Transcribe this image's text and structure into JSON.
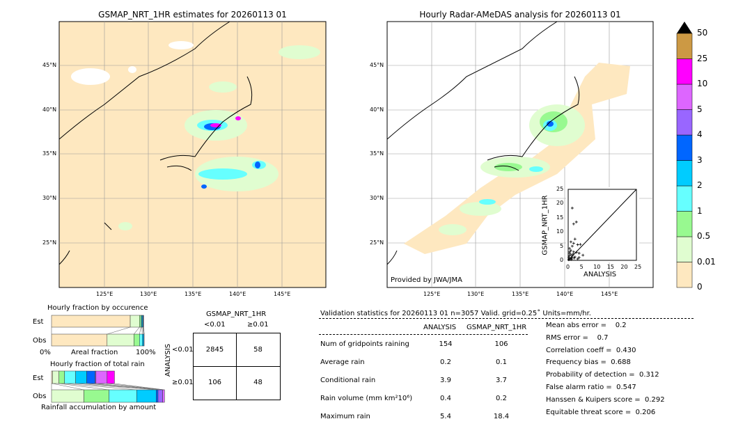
{
  "map_left": {
    "title": "GSMAP_NRT_1HR estimates for 20260113 01",
    "lon_ticks": [
      "125°E",
      "130°E",
      "135°E",
      "140°E",
      "145°E"
    ],
    "lat_ticks": [
      "45°N",
      "40°N",
      "35°N",
      "30°N",
      "25°N"
    ]
  },
  "map_right": {
    "title": "Hourly Radar-AMeDAS analysis for 20260113 01",
    "lon_ticks": [
      "125°E",
      "130°E",
      "135°E",
      "140°E",
      "145°E"
    ],
    "lat_ticks": [
      "45°N",
      "40°N",
      "35°N",
      "30°N",
      "25°N"
    ],
    "credit": "Provided by JWA/JMA"
  },
  "colorbar": {
    "levels": [
      "0",
      "0.01",
      "0.5",
      "1",
      "2",
      "3",
      "4",
      "5",
      "10",
      "25",
      "50"
    ],
    "colors": [
      "#fee8c0",
      "#e0fdd0",
      "#98f990",
      "#66ffff",
      "#00ccff",
      "#0066ff",
      "#9966ff",
      "#dd66ff",
      "#ff00ff",
      "#cc9944"
    ],
    "extend_color": "#000000"
  },
  "chart_data": [
    {
      "type": "scatter",
      "xlabel": "ANALYSIS",
      "ylabel": "GSMAP_NRT_1HR",
      "xlim": [
        0,
        25
      ],
      "ylim": [
        0,
        25
      ],
      "ticks": [
        "0",
        "5",
        "10",
        "15",
        "20",
        "25"
      ],
      "points": [
        [
          1.5,
          18.4
        ],
        [
          2,
          12.8
        ],
        [
          3,
          13.5
        ],
        [
          2.5,
          7.5
        ],
        [
          1,
          6.5
        ],
        [
          2,
          6
        ],
        [
          3.5,
          5.5
        ],
        [
          4.5,
          5.6
        ],
        [
          1.5,
          5
        ],
        [
          0.5,
          4.2
        ],
        [
          1,
          3.5
        ],
        [
          2,
          3
        ],
        [
          3,
          2.8
        ],
        [
          4,
          2.5
        ],
        [
          5.4,
          1.8
        ],
        [
          0.5,
          2.5
        ],
        [
          1,
          2
        ],
        [
          1.5,
          1.5
        ],
        [
          2.5,
          1.2
        ],
        [
          0.3,
          1
        ],
        [
          0.8,
          0.6
        ],
        [
          1.2,
          0.3
        ],
        [
          0.2,
          0.2
        ],
        [
          3.5,
          0.5
        ],
        [
          4,
          1
        ],
        [
          0.6,
          3
        ],
        [
          1.8,
          2.2
        ],
        [
          2.2,
          0.8
        ],
        [
          0.4,
          1.6
        ],
        [
          1.4,
          0.9
        ]
      ]
    },
    {
      "type": "bar",
      "title": "Hourly fraction by occurence",
      "xlabel": "Areal fraction",
      "x_ticks": [
        "0%",
        "100%"
      ],
      "categories": [
        "Est",
        "Obs"
      ],
      "series": [
        {
          "values_est": [
            0.85,
            0.1,
            0.015,
            0.01,
            0.01,
            0.005,
            0.005
          ],
          "values_obs": [
            0.6,
            0.29,
            0.06,
            0.03,
            0.015,
            0.005,
            0
          ]
        }
      ]
    },
    {
      "type": "bar",
      "title": "Hourly fraction of total rain",
      "xlabel": "Rainfall accumulation by amount",
      "categories": [
        "Est",
        "Obs"
      ],
      "series": [
        {
          "values_est": [
            0.01,
            0.07,
            0.06,
            0.12,
            0.12,
            0.09,
            0.01,
            0.12,
            0.08
          ],
          "values_obs": [
            0.35,
            0.27,
            0.3,
            0.21,
            0.02,
            0.05,
            0.02
          ]
        }
      ]
    }
  ],
  "contingency": {
    "title": "GSMAP_NRT_1HR",
    "col_headers": [
      "<0.01",
      "≥0.01"
    ],
    "row_label": "ANALYSIS",
    "row_headers": [
      "<0.01",
      "≥0.01"
    ],
    "cells": [
      [
        "2845",
        "58"
      ],
      [
        "106",
        "48"
      ]
    ]
  },
  "stats": {
    "header": "Validation statistics for 20260113 01  n=3057 Valid. grid=0.25˚ Units=mm/hr.",
    "col1": "ANALYSIS",
    "col2": "GSMAP_NRT_1HR",
    "rows": [
      {
        "label": "Num of gridpoints raining",
        "a": "154",
        "g": "106"
      },
      {
        "label": "Average rain",
        "a": "0.2",
        "g": "0.1"
      },
      {
        "label": "Conditional rain",
        "a": "3.9",
        "g": "3.7"
      },
      {
        "label": "Rain volume (mm km²10⁶)",
        "a": "0.4",
        "g": "0.2"
      },
      {
        "label": "Maximum rain",
        "a": "5.4",
        "g": "18.4"
      }
    ],
    "scores": [
      "Mean abs error =    0.2",
      "RMS error =    0.7",
      "Correlation coeff =  0.430",
      "Frequency bias =  0.688",
      "Probability of detection =  0.312",
      "False alarm ratio =  0.547",
      "Hanssen & Kuipers score =  0.292",
      "Equitable threat score =  0.206"
    ]
  }
}
